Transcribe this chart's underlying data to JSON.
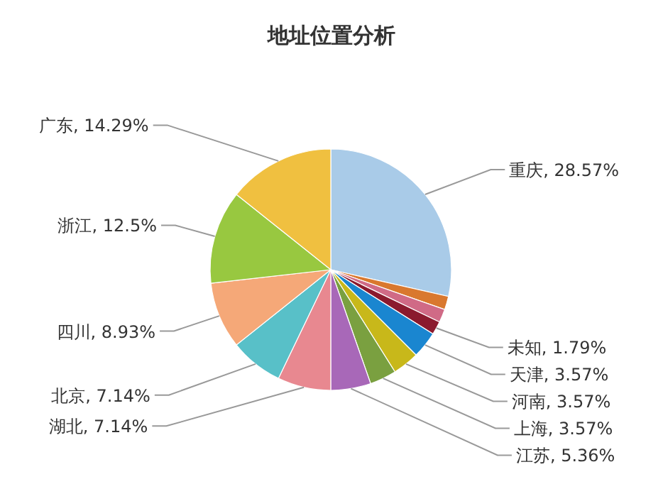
{
  "chart_data": {
    "type": "pie",
    "title": "地址位置分析",
    "categories": [
      "重庆",
      null,
      null,
      "未知",
      "天津",
      "河南",
      "上海",
      "江苏",
      "湖北",
      "北京",
      "四川",
      "浙江",
      "广东"
    ],
    "values": [
      28.57,
      1.79,
      1.79,
      1.79,
      3.57,
      3.57,
      3.57,
      5.36,
      7.14,
      7.14,
      8.93,
      12.5,
      14.29
    ],
    "value_labels": [
      "28.57%",
      null,
      null,
      "1.79%",
      "3.57%",
      "3.57%",
      "3.57%",
      "5.36%",
      "7.14%",
      "7.14%",
      "8.93%",
      "12.5%",
      "14.29%"
    ],
    "colors": [
      "#a9cbe8",
      "#d9782e",
      "#d06a86",
      "#8b1a2e",
      "#1a86d0",
      "#c8b81a",
      "#7aa040",
      "#a868b8",
      "#e88890",
      "#58c0c8",
      "#f5a878",
      "#98c840",
      "#f0c040"
    ]
  }
}
